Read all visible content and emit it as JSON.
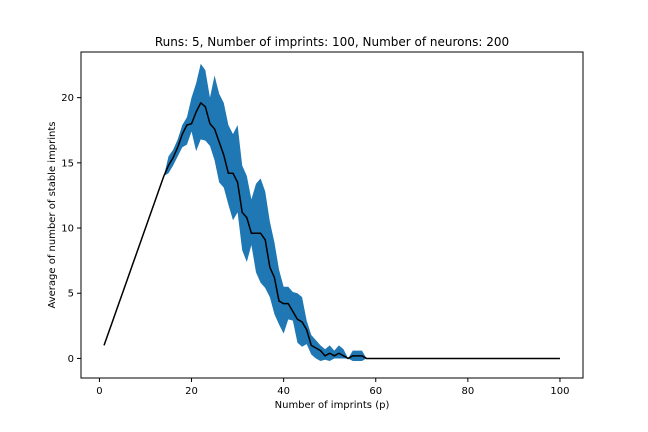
{
  "chart_data": {
    "type": "line",
    "title": "Runs: 5, Number of imprints: 100, Number of neurons: 200",
    "xlabel": "Number of imprints (p)",
    "ylabel": "Average of number of stable imprints",
    "xlim": [
      -4,
      105
    ],
    "ylim": [
      -1.5,
      23.5
    ],
    "xticks": [
      0,
      20,
      40,
      60,
      80,
      100
    ],
    "yticks": [
      0,
      5,
      10,
      15,
      20
    ],
    "grid": false,
    "band_color": "#1f77b4",
    "line_color": "#000000",
    "x": [
      1,
      2,
      3,
      4,
      5,
      6,
      7,
      8,
      9,
      10,
      11,
      12,
      13,
      14,
      15,
      16,
      17,
      18,
      19,
      20,
      21,
      22,
      23,
      24,
      25,
      26,
      27,
      28,
      29,
      30,
      31,
      32,
      33,
      34,
      35,
      36,
      37,
      38,
      39,
      40,
      41,
      42,
      43,
      44,
      45,
      46,
      47,
      48,
      49,
      50,
      51,
      52,
      53,
      54,
      55,
      56,
      57,
      58,
      59,
      60,
      61,
      62,
      63,
      64,
      65,
      66,
      67,
      68,
      69,
      70,
      71,
      72,
      73,
      74,
      75,
      76,
      77,
      78,
      79,
      80,
      81,
      82,
      83,
      84,
      85,
      86,
      87,
      88,
      89,
      90,
      91,
      92,
      93,
      94,
      95,
      96,
      97,
      98,
      99,
      100
    ],
    "mean": [
      1,
      2,
      3,
      4,
      5,
      6,
      7,
      8,
      9,
      10,
      11,
      12,
      13,
      14,
      14.8,
      15.4,
      16.2,
      17.2,
      17.9,
      18.0,
      18.9,
      19.6,
      19.3,
      18.0,
      17.6,
      16.6,
      15.6,
      14.2,
      14.2,
      13.5,
      11.2,
      10.8,
      9.6,
      9.6,
      9.6,
      9.1,
      7.0,
      6.2,
      4.4,
      4.2,
      4.2,
      3.6,
      3.0,
      2.8,
      2.2,
      1.0,
      0.8,
      0.6,
      0.2,
      0.4,
      0.2,
      0.4,
      0.2,
      0,
      0.2,
      0.2,
      0.2,
      0,
      0,
      0,
      0,
      0,
      0,
      0,
      0,
      0,
      0,
      0,
      0,
      0,
      0,
      0,
      0,
      0,
      0,
      0,
      0,
      0,
      0,
      0,
      0,
      0,
      0,
      0,
      0,
      0,
      0,
      0,
      0,
      0,
      0,
      0,
      0,
      0,
      0,
      0,
      0,
      0,
      0,
      0
    ],
    "upper": [
      1,
      2,
      3,
      4,
      5,
      6,
      7,
      8,
      9,
      10,
      11,
      12,
      13,
      14,
      15.5,
      16.0,
      16.8,
      17.9,
      18.5,
      20.0,
      21.1,
      22.6,
      22.1,
      20.0,
      21.7,
      20.3,
      19.6,
      17.9,
      17.2,
      17.9,
      14.8,
      14.0,
      12.2,
      13.4,
      13.8,
      12.8,
      10.5,
      8.9,
      6.8,
      5.5,
      5.5,
      5.1,
      5.0,
      4.7,
      2.9,
      1.8,
      1.4,
      1.0,
      0.7,
      1.0,
      0.6,
      1.0,
      0.7,
      0,
      0.6,
      0.6,
      0.6,
      0,
      0,
      0,
      0,
      0,
      0,
      0,
      0,
      0,
      0,
      0,
      0,
      0,
      0,
      0,
      0,
      0,
      0,
      0,
      0,
      0,
      0,
      0,
      0,
      0,
      0,
      0,
      0,
      0,
      0,
      0,
      0,
      0,
      0,
      0,
      0,
      0,
      0,
      0,
      0,
      0,
      0,
      0
    ],
    "lower": [
      1,
      2,
      3,
      4,
      5,
      6,
      7,
      8,
      9,
      10,
      11,
      12,
      13,
      14,
      14.2,
      14.8,
      15.5,
      16.2,
      16.4,
      17.4,
      15.9,
      16.8,
      16.7,
      16.3,
      15.2,
      13.5,
      13.1,
      11.8,
      10.6,
      11.2,
      8.3,
      7.4,
      8.7,
      6.6,
      5.8,
      5.4,
      4.7,
      3.4,
      2.6,
      1.9,
      3.0,
      2.9,
      1.2,
      0.9,
      1.1,
      0.3,
      0.0,
      -0.2,
      -0.1,
      -0.2,
      0.0,
      0.0,
      0.0,
      0,
      -0.2,
      -0.2,
      -0.2,
      0,
      0,
      0,
      0,
      0,
      0,
      0,
      0,
      0,
      0,
      0,
      0,
      0,
      0,
      0,
      0,
      0,
      0,
      0,
      0,
      0,
      0,
      0,
      0,
      0,
      0,
      0,
      0,
      0,
      0,
      0,
      0,
      0,
      0,
      0,
      0,
      0,
      0,
      0,
      0,
      0,
      0,
      0
    ]
  }
}
